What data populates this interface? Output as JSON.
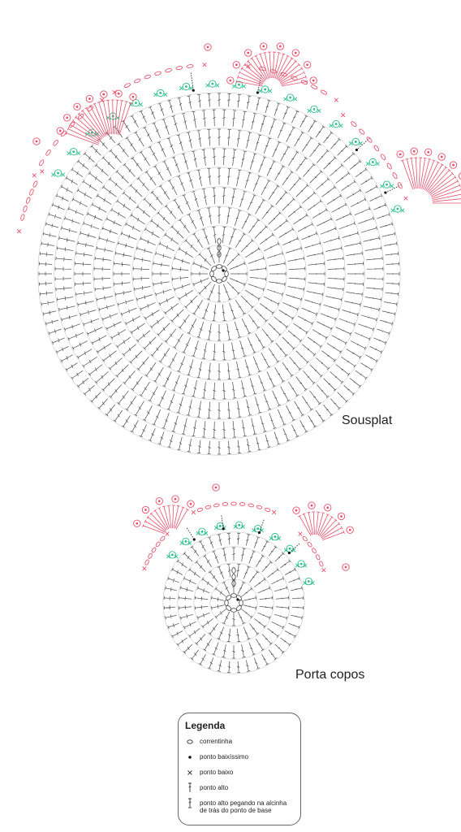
{
  "captions": {
    "large": "Sousplat",
    "small": "Porta copos"
  },
  "legend": {
    "title": "Legenda",
    "items": [
      {
        "symbol": "chain-oval-icon",
        "label": "correntinha"
      },
      {
        "symbol": "slip-stitch-dot-icon",
        "label": "ponto baixíssimo"
      },
      {
        "symbol": "single-crochet-x-icon",
        "label": "ponto baixo"
      },
      {
        "symbol": "double-crochet-icon",
        "label": "ponto alto"
      },
      {
        "symbol": "back-loop-double-crochet-icon",
        "label": "ponto alto pegando na alcinha de trás do ponto de base"
      }
    ]
  },
  "colors": {
    "base_stitches": "#555555",
    "green_motif": "#2bbf8a",
    "red_motif": "#e8506a",
    "arrow": "#111111"
  }
}
